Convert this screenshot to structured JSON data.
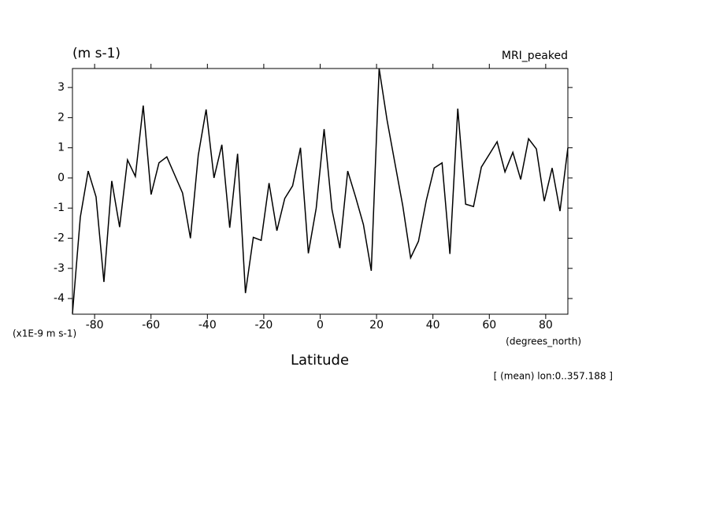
{
  "chart_data": {
    "type": "line",
    "title": "MRI_peaked",
    "y_units": "(m s-1)",
    "y_scale_label": "(x1E-9 m s-1)",
    "x_units": "(degrees_north)",
    "xlabel": "Latitude",
    "annotation": "[ (mean) lon:0..357.188 ]",
    "x": [
      -87.86,
      -85.07,
      -82.28,
      -79.49,
      -76.7,
      -73.92,
      -71.13,
      -68.34,
      -65.55,
      -62.76,
      -59.97,
      -57.18,
      -54.39,
      -51.6,
      -48.81,
      -46.02,
      -43.24,
      -40.45,
      -37.66,
      -34.87,
      -32.08,
      -29.29,
      -26.5,
      -23.71,
      -20.92,
      -18.13,
      -15.35,
      -12.56,
      -9.77,
      -6.98,
      -4.19,
      -1.4,
      1.4,
      4.19,
      6.98,
      9.77,
      12.56,
      15.35,
      18.13,
      20.92,
      23.71,
      26.5,
      29.29,
      32.08,
      34.87,
      37.66,
      40.45,
      43.24,
      46.02,
      48.81,
      51.6,
      54.39,
      57.18,
      59.97,
      62.76,
      65.55,
      68.34,
      71.13,
      73.92,
      76.7,
      79.49,
      82.28,
      85.07,
      87.86
    ],
    "series": [
      {
        "color": "#000000",
        "values": [
          -4.5,
          -1.3,
          0.23,
          -0.63,
          -3.45,
          -0.1,
          -1.63,
          0.6,
          0.05,
          2.4,
          -0.55,
          0.5,
          0.7,
          0.1,
          -0.5,
          -2.0,
          0.75,
          2.27,
          0.0,
          1.1,
          -1.65,
          0.8,
          -3.82,
          -1.97,
          -2.07,
          -0.17,
          -1.75,
          -0.68,
          -0.26,
          1.0,
          -2.5,
          -1.0,
          1.62,
          -1.05,
          -2.33,
          0.23,
          -0.63,
          -1.55,
          -3.08,
          3.63,
          1.93,
          0.5,
          -0.92,
          -2.65,
          -2.1,
          -0.74,
          0.33,
          0.5,
          -2.52,
          2.3,
          -0.87,
          -0.95,
          0.36,
          0.78,
          1.2,
          0.2,
          0.85,
          -0.05,
          1.3,
          0.96,
          -0.77,
          0.33,
          -1.1,
          1.0
        ]
      }
    ],
    "xlim": [
      -87.86,
      87.86
    ],
    "ylim": [
      -4.52,
      3.63
    ],
    "xticks": [
      -80,
      -60,
      -40,
      -20,
      0,
      20,
      40,
      60,
      80
    ],
    "yticks": [
      -4,
      -3,
      -2,
      -1,
      0,
      1,
      2,
      3
    ]
  }
}
